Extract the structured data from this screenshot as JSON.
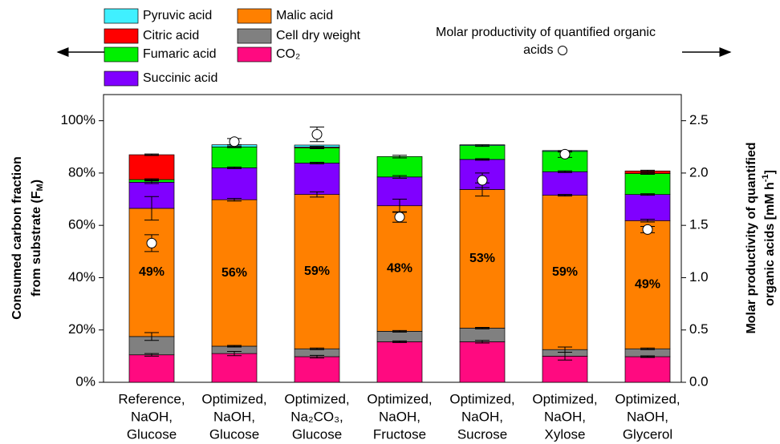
{
  "chart_data": {
    "type": "stacked_bar",
    "ylabel": {
      "line1": "Consumed carbon fraction",
      "line2": "from substrate (F",
      "sub": "M",
      "end": ")"
    },
    "y2label": {
      "line1": "Molar productivity of quantified",
      "line2": "organic acids [mM h",
      "sup": "-1",
      "end": "]"
    },
    "categories": [
      [
        "Reference,",
        "NaOH,",
        "Glucose"
      ],
      [
        "Optimized,",
        "NaOH,",
        "Glucose"
      ],
      [
        "Optimized,",
        "Na₂CO₃,",
        "Glucose"
      ],
      [
        "Optimized,",
        "NaOH,",
        "Fructose"
      ],
      [
        "Optimized,",
        "NaOH,",
        "Sucrose"
      ],
      [
        "Optimized,",
        "NaOH,",
        "Xylose"
      ],
      [
        "Optimized,",
        "NaOH,",
        "Glycerol"
      ]
    ],
    "series": [
      {
        "name": "CO₂",
        "color": "#ff0a80",
        "values": [
          10.5,
          11,
          9.8,
          15.5,
          15.5,
          10,
          9.8
        ],
        "errors": [
          0.5,
          0.8,
          0.5,
          0.3,
          0.5,
          1.5,
          0.3
        ]
      },
      {
        "name": "Cell dry weight",
        "color": "#808080",
        "values": [
          7,
          2.8,
          3,
          4,
          5.2,
          2.5,
          3
        ],
        "errors": [
          1.5,
          0.3,
          0.3,
          0.3,
          0.3,
          1,
          0.3
        ]
      },
      {
        "name": "Malic acid",
        "color": "#ff8000",
        "values": [
          49,
          56,
          59,
          48,
          53,
          59,
          49
        ],
        "value_labels": [
          "49%",
          "56%",
          "59%",
          "48%",
          "53%",
          "59%",
          "49%"
        ],
        "errors": [
          4.5,
          0.5,
          1,
          2.5,
          2.5,
          0.3,
          0.5
        ]
      },
      {
        "name": "Succinic acid",
        "color": "#8000ff",
        "values": [
          10,
          12.2,
          12,
          11,
          11.5,
          9,
          10
        ],
        "errors": [
          0.5,
          0.3,
          0.3,
          0.5,
          0.3,
          0.3,
          0.3
        ]
      },
      {
        "name": "Fumaric acid",
        "color": "#00f000",
        "values": [
          1,
          8,
          5.8,
          7.8,
          5.3,
          7.8,
          8
        ],
        "errors": [
          0.3,
          0.3,
          0.3,
          0.5,
          0.3,
          0.3,
          0.3
        ]
      },
      {
        "name": "Citric acid",
        "color": "#ff0000",
        "values": [
          9.5,
          0,
          0.3,
          0,
          0,
          0,
          1
        ],
        "errors": [
          0.3,
          0.3,
          0.3,
          0.3,
          0.3,
          0.3,
          0.3
        ]
      },
      {
        "name": "Pyruvic acid",
        "color": "#40f0ff",
        "values": [
          0,
          0.8,
          0.8,
          0,
          0.3,
          0.3,
          0
        ]
      }
    ],
    "marker_series": {
      "name": "Molar productivity of quantified organic acids",
      "axis": "y2",
      "values": [
        1.33,
        2.3,
        2.37,
        1.58,
        1.93,
        2.18,
        1.46
      ],
      "errors": [
        0.08,
        0.03,
        0.07,
        0.05,
        0.07,
        0.03,
        0.03
      ]
    },
    "ylim": [
      0,
      110
    ],
    "yticks": [
      {
        "value": 0,
        "label": "0%"
      },
      {
        "value": 20,
        "label": "20%"
      },
      {
        "value": 40,
        "label": "40%"
      },
      {
        "value": 60,
        "label": "60%"
      },
      {
        "value": 80,
        "label": "80%"
      },
      {
        "value": 100,
        "label": "100%"
      }
    ],
    "y2lim": [
      0,
      2.75
    ],
    "y2ticks": [
      {
        "value": 0,
        "label": "0.0"
      },
      0.5,
      {
        "value": 1,
        "label": "1.0"
      },
      1.5,
      {
        "value": 2,
        "label": "2.0"
      },
      2.5
    ]
  }
}
